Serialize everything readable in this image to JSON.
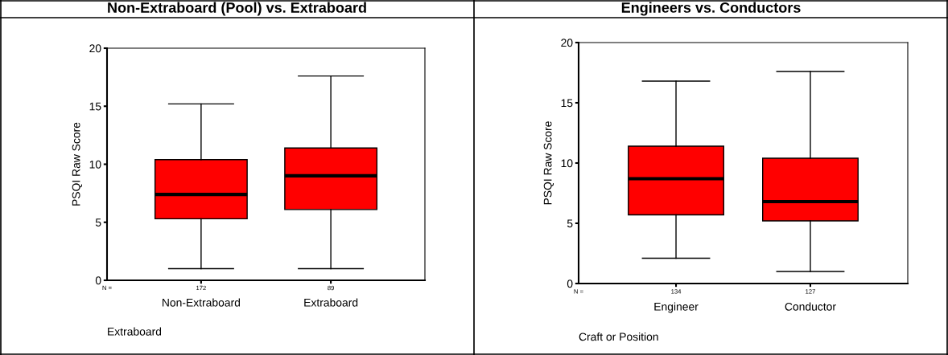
{
  "chart_data": [
    {
      "type": "box",
      "title": "Non-Extraboard (Pool) vs. Extraboard",
      "xlabel": "Extraboard",
      "ylabel": "PSQI Raw Score",
      "categories": [
        "Non-Extraboard",
        "Extraboard"
      ],
      "color": "#ff0000",
      "ylim": [
        0,
        20
      ],
      "yticks": [
        0,
        5,
        10,
        15,
        20
      ],
      "grid": false,
      "boxes": [
        {
          "low": 1.0,
          "q1": 5.3,
          "median": 7.4,
          "q3": 10.4,
          "high": 15.2
        },
        {
          "low": 1.0,
          "q1": 6.1,
          "median": 9.0,
          "q3": 11.4,
          "high": 17.6
        }
      ],
      "annotations": [
        "N =",
        "172",
        "89"
      ]
    },
    {
      "type": "box",
      "title": "Engineers vs. Conductors",
      "xlabel": "Craft or Position",
      "ylabel": "PSQI Raw Score",
      "categories": [
        "Engineer",
        "Conductor"
      ],
      "color": "#ff0000",
      "ylim": [
        0,
        20
      ],
      "yticks": [
        0,
        5,
        10,
        15,
        20
      ],
      "grid": false,
      "boxes": [
        {
          "low": 2.1,
          "q1": 5.7,
          "median": 8.7,
          "q3": 11.4,
          "high": 16.8
        },
        {
          "low": 1.0,
          "q1": 5.2,
          "median": 6.8,
          "q3": 10.4,
          "high": 17.6
        }
      ],
      "annotations": [
        "N =",
        "134",
        "127"
      ]
    }
  ]
}
